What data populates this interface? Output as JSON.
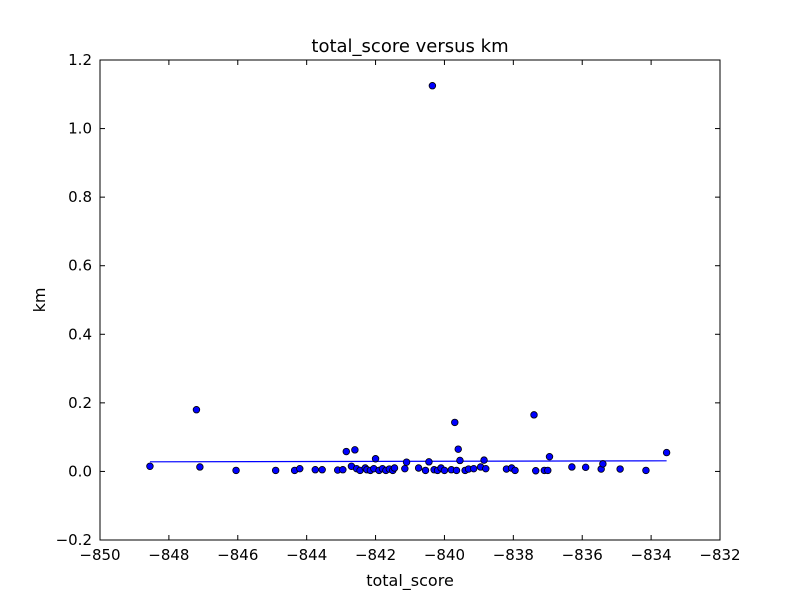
{
  "chart_data": {
    "type": "scatter",
    "title": "total_score versus km",
    "xlabel": "total_score",
    "ylabel": "km",
    "xlim": [
      -850,
      -832
    ],
    "ylim": [
      -0.2,
      1.2
    ],
    "xticks": [
      -850,
      -848,
      -846,
      -844,
      -842,
      -840,
      -838,
      -836,
      -834,
      -832
    ],
    "yticks": [
      -0.2,
      0.0,
      0.2,
      0.4,
      0.6,
      0.8,
      1.0,
      1.2
    ],
    "xtick_labels": [
      "−850",
      "−848",
      "−846",
      "−844",
      "−842",
      "−840",
      "−838",
      "−836",
      "−834",
      "−832"
    ],
    "ytick_labels": [
      "−0.2",
      "0.0",
      "0.2",
      "0.4",
      "0.6",
      "0.8",
      "1.0",
      "1.2"
    ],
    "grid": false,
    "marker_color": "#0000ff",
    "line_color": "#0000ff",
    "points": [
      [
        -848.55,
        0.015
      ],
      [
        -847.2,
        0.18
      ],
      [
        -847.1,
        0.013
      ],
      [
        -846.05,
        0.003
      ],
      [
        -844.9,
        0.003
      ],
      [
        -844.35,
        0.003
      ],
      [
        -844.2,
        0.008
      ],
      [
        -843.75,
        0.005
      ],
      [
        -843.55,
        0.005
      ],
      [
        -843.1,
        0.004
      ],
      [
        -842.95,
        0.005
      ],
      [
        -842.85,
        0.058
      ],
      [
        -842.7,
        0.015
      ],
      [
        -842.6,
        0.063
      ],
      [
        -842.55,
        0.008
      ],
      [
        -842.45,
        0.003
      ],
      [
        -842.3,
        0.01
      ],
      [
        -842.25,
        0.005
      ],
      [
        -842.15,
        0.003
      ],
      [
        -842.05,
        0.008
      ],
      [
        -842.0,
        0.037
      ],
      [
        -841.9,
        0.003
      ],
      [
        -841.8,
        0.008
      ],
      [
        -841.7,
        0.003
      ],
      [
        -841.6,
        0.007
      ],
      [
        -841.5,
        0.003
      ],
      [
        -841.45,
        0.01
      ],
      [
        -841.15,
        0.008
      ],
      [
        -841.1,
        0.027
      ],
      [
        -840.75,
        0.01
      ],
      [
        -840.55,
        0.003
      ],
      [
        -840.45,
        0.028
      ],
      [
        -840.3,
        0.005
      ],
      [
        -840.2,
        0.003
      ],
      [
        -840.1,
        0.01
      ],
      [
        -840.0,
        0.003
      ],
      [
        -839.8,
        0.005
      ],
      [
        -839.7,
        0.143
      ],
      [
        -839.65,
        0.003
      ],
      [
        -839.6,
        0.065
      ],
      [
        -839.55,
        0.032
      ],
      [
        -839.4,
        0.003
      ],
      [
        -839.3,
        0.007
      ],
      [
        -839.15,
        0.008
      ],
      [
        -838.95,
        0.013
      ],
      [
        -838.85,
        0.033
      ],
      [
        -838.8,
        0.008
      ],
      [
        -838.2,
        0.007
      ],
      [
        -838.05,
        0.01
      ],
      [
        -837.95,
        0.003
      ],
      [
        -837.4,
        0.165
      ],
      [
        -837.35,
        0.002
      ],
      [
        -837.1,
        0.003
      ],
      [
        -837.0,
        0.003
      ],
      [
        -836.95,
        0.043
      ],
      [
        -836.3,
        0.013
      ],
      [
        -835.9,
        0.012
      ],
      [
        -835.45,
        0.007
      ],
      [
        -835.4,
        0.022
      ],
      [
        -834.9,
        0.007
      ],
      [
        -834.15,
        0.003
      ],
      [
        -833.55,
        0.055
      ],
      [
        -840.35,
        1.125
      ]
    ],
    "fit_line": {
      "x": [
        -848.55,
        -833.55
      ],
      "y": [
        0.028,
        0.031
      ]
    }
  }
}
